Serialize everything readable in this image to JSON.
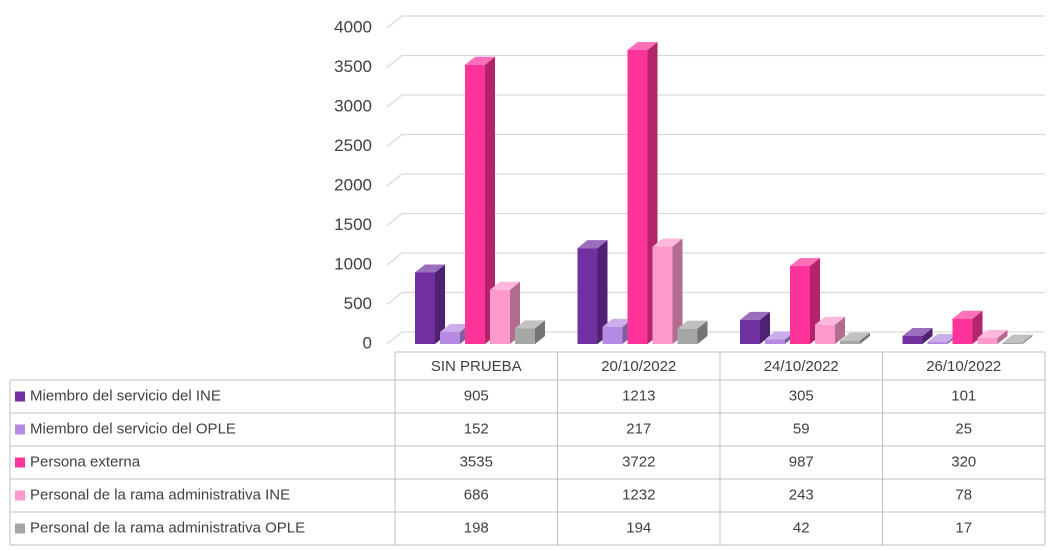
{
  "chart_data": {
    "type": "bar",
    "categories": [
      "SIN PRUEBA",
      "20/10/2022",
      "24/10/2022",
      "26/10/2022"
    ],
    "series": [
      {
        "name": "Miembro del servicio del INE",
        "color": "#7030a0",
        "values": [
          905,
          1213,
          305,
          101
        ]
      },
      {
        "name": "Miembro del servicio del OPLE",
        "color": "#b48ae2",
        "values": [
          152,
          217,
          59,
          25
        ]
      },
      {
        "name": "Persona externa",
        "color": "#ff3399",
        "values": [
          3535,
          3722,
          987,
          320
        ]
      },
      {
        "name": "Personal de la rama administrativa INE",
        "color": "#ff99cc",
        "values": [
          686,
          1232,
          243,
          78
        ]
      },
      {
        "name": "Personal de la rama administrativa OPLE",
        "color": "#a6a6a6",
        "values": [
          198,
          194,
          42,
          17
        ]
      }
    ],
    "ylim": [
      0,
      4000
    ],
    "yticks": [
      0,
      500,
      1000,
      1500,
      2000,
      2500,
      3000,
      3500,
      4000
    ],
    "grid": true
  }
}
